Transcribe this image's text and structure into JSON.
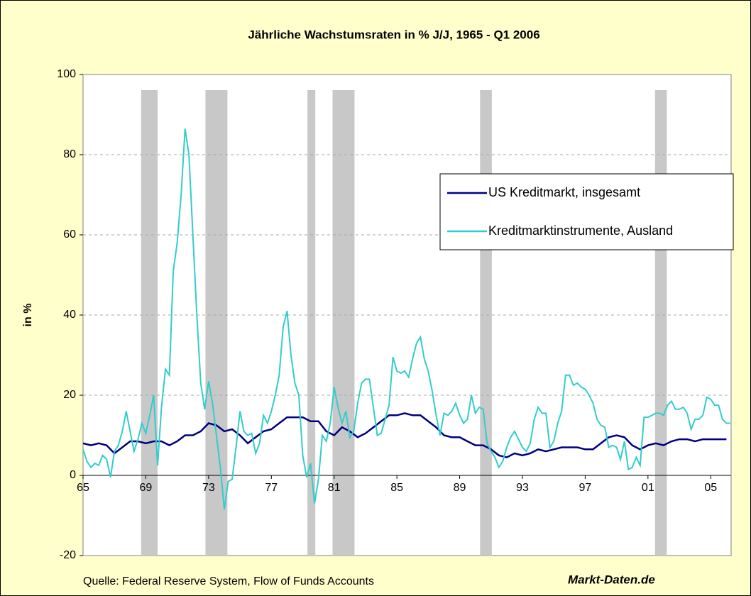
{
  "chart_data": {
    "type": "line",
    "title": "Jährliche Wachstumsraten in % J/J, 1965 - Q1 2006",
    "ylabel": "in %",
    "source": "Quelle: Federal Reserve System, Flow of Funds Accounts",
    "brand": "Markt-Daten.de",
    "xlim": [
      1965,
      2006.3
    ],
    "xticks": [
      {
        "value": 1965,
        "label": "65"
      },
      {
        "value": 1969,
        "label": "69"
      },
      {
        "value": 1973,
        "label": "73"
      },
      {
        "value": 1977,
        "label": "77"
      },
      {
        "value": 1981,
        "label": "81"
      },
      {
        "value": 1985,
        "label": "85"
      },
      {
        "value": 1989,
        "label": "89"
      },
      {
        "value": 1993,
        "label": "93"
      },
      {
        "value": 1997,
        "label": "97"
      },
      {
        "value": 2001,
        "label": "01"
      },
      {
        "value": 2005,
        "label": "05"
      }
    ],
    "ylim": [
      -20,
      100
    ],
    "yticks": [
      -20,
      0,
      20,
      40,
      60,
      80,
      100
    ],
    "grid": true,
    "legend": "right",
    "shaded_color": "#c8c8c8",
    "shaded_periods": [
      [
        1968.7,
        1969.75
      ],
      [
        1972.8,
        1974.2
      ],
      [
        1979.3,
        1979.8
      ],
      [
        1980.9,
        1982.3
      ],
      [
        1990.3,
        1991.05
      ],
      [
        2001.45,
        2002.2
      ]
    ],
    "series": [
      {
        "name": "US Kreditmarkt, insgesamt",
        "color": "#000080",
        "x": [
          1965,
          1965.5,
          1966,
          1966.5,
          1967,
          1967.5,
          1968,
          1968.5,
          1969,
          1969.5,
          1970,
          1970.5,
          1971,
          1971.5,
          1972,
          1972.5,
          1973,
          1973.5,
          1974,
          1974.5,
          1975,
          1975.5,
          1976,
          1976.5,
          1977,
          1977.5,
          1978,
          1978.5,
          1979,
          1979.5,
          1980,
          1980.5,
          1981,
          1981.5,
          1982,
          1982.5,
          1983,
          1983.5,
          1984,
          1984.5,
          1985,
          1985.5,
          1986,
          1986.5,
          1987,
          1987.5,
          1988,
          1988.5,
          1989,
          1989.5,
          1990,
          1990.5,
          1991,
          1991.5,
          1992,
          1992.5,
          1993,
          1993.5,
          1994,
          1994.5,
          1995,
          1995.5,
          1996,
          1996.5,
          1997,
          1997.5,
          1998,
          1998.5,
          1999,
          1999.5,
          2000,
          2000.5,
          2001,
          2001.5,
          2002,
          2002.5,
          2003,
          2003.5,
          2004,
          2004.5,
          2005,
          2005.5,
          2006
        ],
        "values": [
          8,
          7.5,
          8,
          7.5,
          5.5,
          7,
          8.5,
          8.5,
          8,
          8.5,
          8.5,
          7.5,
          8.5,
          10,
          10,
          11,
          13,
          12.5,
          11,
          11.5,
          10,
          8,
          9.5,
          11,
          11.5,
          13,
          14.5,
          14.5,
          14.5,
          13.5,
          13.5,
          11,
          10,
          12,
          11,
          9.5,
          10.5,
          12,
          13.5,
          15,
          15,
          15.5,
          15,
          15,
          13.5,
          12,
          10,
          9.5,
          9.5,
          8.5,
          7.5,
          7.5,
          6.5,
          5,
          4.5,
          5.5,
          5,
          5.5,
          6.5,
          6,
          6.5,
          7,
          7,
          7,
          6.5,
          6.5,
          8,
          9.5,
          10,
          9.5,
          7.5,
          6.5,
          7.5,
          8,
          7.5,
          8.5,
          9,
          9,
          8.5,
          9,
          9,
          9,
          9
        ]
      },
      {
        "name": "Kreditmarktinstrumente, Ausland",
        "color": "#33cccc",
        "x": [
          1965,
          1965.25,
          1965.5,
          1965.75,
          1966,
          1966.25,
          1966.5,
          1966.75,
          1967,
          1967.25,
          1967.5,
          1967.75,
          1968,
          1968.25,
          1968.5,
          1968.75,
          1969,
          1969.25,
          1969.5,
          1969.75,
          1970,
          1970.25,
          1970.5,
          1970.75,
          1971,
          1971.25,
          1971.5,
          1971.75,
          1972,
          1972.25,
          1972.5,
          1972.75,
          1973,
          1973.25,
          1973.5,
          1973.75,
          1974,
          1974.25,
          1974.5,
          1974.75,
          1975,
          1975.25,
          1975.5,
          1975.75,
          1976,
          1976.25,
          1976.5,
          1976.75,
          1977,
          1977.25,
          1977.5,
          1977.75,
          1978,
          1978.25,
          1978.5,
          1978.75,
          1979,
          1979.25,
          1979.5,
          1979.75,
          1980,
          1980.25,
          1980.5,
          1980.75,
          1981,
          1981.25,
          1981.5,
          1981.75,
          1982,
          1982.25,
          1982.5,
          1982.75,
          1983,
          1983.25,
          1983.5,
          1983.75,
          1984,
          1984.25,
          1984.5,
          1984.75,
          1985,
          1985.25,
          1985.5,
          1985.75,
          1986,
          1986.25,
          1986.5,
          1986.75,
          1987,
          1987.25,
          1987.5,
          1987.75,
          1988,
          1988.25,
          1988.5,
          1988.75,
          1989,
          1989.25,
          1989.5,
          1989.75,
          1990,
          1990.25,
          1990.5,
          1990.75,
          1991,
          1991.25,
          1991.5,
          1991.75,
          1992,
          1992.25,
          1992.5,
          1992.75,
          1993,
          1993.25,
          1993.5,
          1993.75,
          1994,
          1994.25,
          1994.5,
          1994.75,
          1995,
          1995.25,
          1995.5,
          1995.75,
          1996,
          1996.25,
          1996.5,
          1996.75,
          1997,
          1997.25,
          1997.5,
          1997.75,
          1998,
          1998.25,
          1998.5,
          1998.75,
          1999,
          1999.25,
          1999.5,
          1999.75,
          2000,
          2000.25,
          2000.5,
          2000.75,
          2001,
          2001.25,
          2001.5,
          2001.75,
          2002,
          2002.25,
          2002.5,
          2002.75,
          2003,
          2003.25,
          2003.5,
          2003.75,
          2004,
          2004.25,
          2004.5,
          2004.75,
          2005,
          2005.25,
          2005.5,
          2005.75,
          2006,
          2006.25
        ],
        "values": [
          6.5,
          3.5,
          2,
          3,
          2.5,
          5,
          4,
          -0.5,
          6,
          7.5,
          11,
          16,
          11,
          6,
          9,
          13,
          10.5,
          15,
          20,
          2.5,
          17,
          26.5,
          25,
          51,
          58,
          70,
          86.5,
          80,
          60,
          40,
          23,
          16.5,
          23.5,
          18,
          10,
          2,
          -8.5,
          -1.5,
          -1,
          7,
          16,
          11,
          10,
          10.5,
          5.5,
          8,
          15,
          13,
          16,
          20,
          25,
          37,
          41,
          30,
          23,
          20,
          5,
          -0.5,
          3,
          -7,
          -1,
          10,
          8.5,
          13,
          22,
          17,
          13,
          16,
          9.5,
          11,
          18,
          23,
          24,
          24,
          17,
          10,
          10.5,
          14,
          17.5,
          29.5,
          26,
          25.5,
          26,
          24.5,
          29,
          33,
          34.5,
          29,
          26,
          21,
          15,
          10,
          15.5,
          15,
          16,
          18,
          15,
          13,
          14,
          20,
          15.5,
          17,
          16.5,
          8,
          6,
          4.5,
          2,
          3.5,
          7,
          9.5,
          11,
          9,
          7,
          6,
          8,
          14,
          17,
          15.5,
          15.5,
          7,
          8.5,
          13,
          16,
          25,
          25,
          22.5,
          23,
          22,
          21.5,
          20,
          18,
          14,
          12.5,
          12,
          7,
          7.5,
          7,
          4,
          8.5,
          1.5,
          2,
          4.5,
          2.5,
          14.5,
          14.5,
          15,
          15.5,
          15.5,
          15,
          17.5,
          18.5,
          16.5,
          16.5,
          17,
          15.5,
          11.5,
          14,
          14,
          15,
          19.5,
          19,
          17.5,
          17.5,
          14,
          13,
          13
        ]
      }
    ]
  }
}
